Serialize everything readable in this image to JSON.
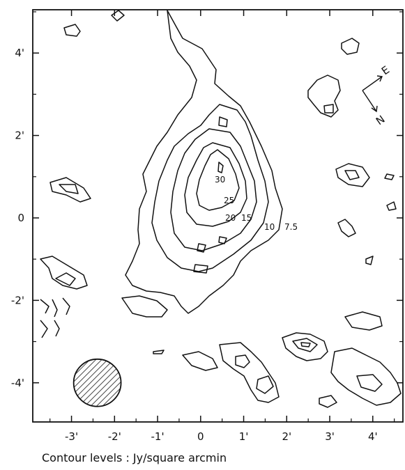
{
  "chart_data": {
    "type": "contour",
    "caption": "Contour levels : Jy/square arcmin",
    "x_ticks": [
      "-3'",
      "-2'",
      "-1'",
      "0",
      "1'",
      "2'",
      "3'",
      "4'"
    ],
    "x_tick_values": [
      -3,
      -2,
      -1,
      0,
      1,
      2,
      3,
      4
    ],
    "y_ticks": [
      "4'",
      "2'",
      "0",
      "-2'",
      "-4'"
    ],
    "y_tick_values": [
      4,
      2,
      0,
      -2,
      -4
    ],
    "xlim": [
      -3.9,
      4.7
    ],
    "ylim": [
      -4.95,
      5.05
    ],
    "contour_level_labels": [
      "30",
      "25",
      "20",
      "15",
      "10",
      "7.5"
    ],
    "compass": {
      "east": "E",
      "north": "N"
    },
    "beam": {
      "x": -2.4,
      "y": -4.0,
      "diameter_arcmin": 1.1
    },
    "grid": false,
    "legend": "none"
  }
}
